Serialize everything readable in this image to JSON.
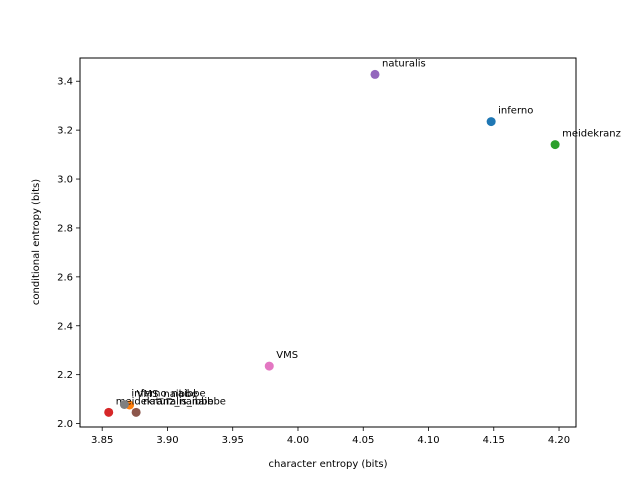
{
  "chart_data": {
    "type": "scatter",
    "xlabel": "character entropy (bits)",
    "ylabel": "conditional entropy (bits)",
    "xlim": [
      3.833,
      4.213
    ],
    "ylim": [
      1.986,
      3.495
    ],
    "grid": false,
    "x_ticks": [
      "3.85",
      "3.90",
      "3.95",
      "4.00",
      "4.05",
      "4.10",
      "4.15",
      "4.20"
    ],
    "y_ticks": [
      "2.0",
      "2.2",
      "2.4",
      "2.6",
      "2.8",
      "3.0",
      "3.2",
      "3.4"
    ],
    "points": [
      {
        "label": "inferno",
        "x": 4.148,
        "y": 3.235,
        "color": "#1f77b4"
      },
      {
        "label": "VMS_naibbe",
        "x": 3.871,
        "y": 2.076,
        "color": "#ff7f0e"
      },
      {
        "label": "meidekranz",
        "x": 4.197,
        "y": 3.141,
        "color": "#2ca02c"
      },
      {
        "label": "meidekranz_naibbe",
        "x": 3.855,
        "y": 2.046,
        "color": "#d62728"
      },
      {
        "label": "naturalis",
        "x": 4.059,
        "y": 3.428,
        "color": "#9467bd"
      },
      {
        "label": "naturalis_naibbe",
        "x": 3.876,
        "y": 2.046,
        "color": "#8c564b"
      },
      {
        "label": "VMS",
        "x": 3.978,
        "y": 2.235,
        "color": "#e377c2"
      },
      {
        "label": "inferno_naibbe",
        "x": 3.867,
        "y": 2.078,
        "color": "#7f7f7f"
      }
    ]
  }
}
